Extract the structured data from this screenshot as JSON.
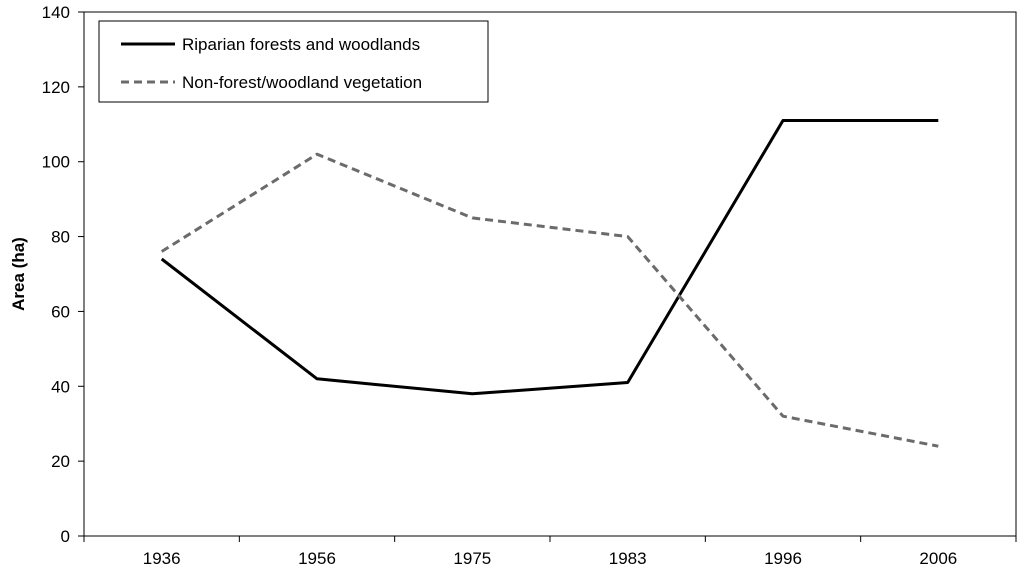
{
  "chart_data": {
    "type": "line",
    "title": "",
    "xlabel": "",
    "ylabel": "Area (ha)",
    "categories": [
      "1936",
      "1956",
      "1975",
      "1983",
      "1996",
      "2006"
    ],
    "ylim": [
      0,
      140
    ],
    "yticks": [
      "0",
      "20",
      "40",
      "60",
      "80",
      "100",
      "120",
      "140"
    ],
    "grid": false,
    "legend_position": "top-left",
    "series": [
      {
        "name": "Riparian forests and woodlands",
        "values": [
          74,
          42,
          38,
          41,
          111,
          111
        ],
        "color": "#000000",
        "style": "solid"
      },
      {
        "name": "Non-forest/woodland vegetation",
        "values": [
          76,
          102,
          85,
          80,
          32,
          24
        ],
        "color": "#6b6b6b",
        "style": "dashed"
      }
    ]
  }
}
